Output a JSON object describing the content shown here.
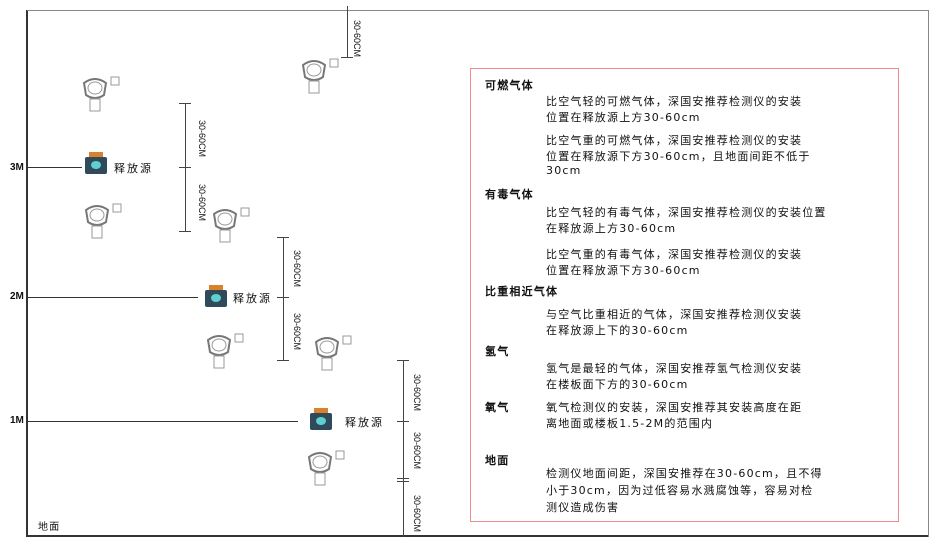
{
  "levels": [
    "3M",
    "2M",
    "1M"
  ],
  "source_label": "释放源",
  "ground_label": "地面",
  "dimension_label": "30-60CM",
  "colors": {
    "panel_border": "#f08a8a",
    "source_body": "#2f4a5a",
    "source_cap": "#d9822b",
    "source_face": "#5fd0d0"
  },
  "panel": {
    "sections": [
      {
        "heading": "可燃气体",
        "paragraphs": [
          [
            "比空气轻的可燃气体，深国安推荐检测仪的安装",
            "位置在释放源上方30-60cm"
          ],
          [
            "比空气重的可燃气体，深国安推荐检测仪的安装",
            "位置在释放源下方30-60cm，且地面间距不低于",
            "30cm"
          ]
        ]
      },
      {
        "heading": "有毒气体",
        "paragraphs": [
          [
            "比空气轻的有毒气体，深国安推荐检测仪的安装位置",
            "在释放源上方30-60cm"
          ],
          [
            "比空气重的有毒气体，深国安推荐检测仪的安装",
            "位置在释放源下方30-60cm"
          ]
        ]
      },
      {
        "heading": "比重相近气体",
        "paragraphs": [
          [
            "与空气比重相近的气体，深国安推荐检测仪安装",
            "在释放源上下的30-60cm"
          ]
        ]
      },
      {
        "heading": "氢气",
        "paragraphs": [
          [
            "氢气是最轻的气体，深国安推荐氢气检测仪安装",
            "在楼板面下方的30-60cm"
          ]
        ]
      },
      {
        "heading": "氧气",
        "paragraphs": [
          [
            "氧气检测仪的安装，深国安推荐其安装高度在距",
            "离地面或楼板1.5-2M的范围内"
          ]
        ]
      },
      {
        "heading": "地面",
        "paragraphs": [
          [
            "检测仪地面间距，深国安推荐在30-60cm，且不得",
            "小于30cm，因为过低容易水溅腐蚀等，容易对检",
            "测仪造成伤害"
          ]
        ]
      }
    ]
  }
}
